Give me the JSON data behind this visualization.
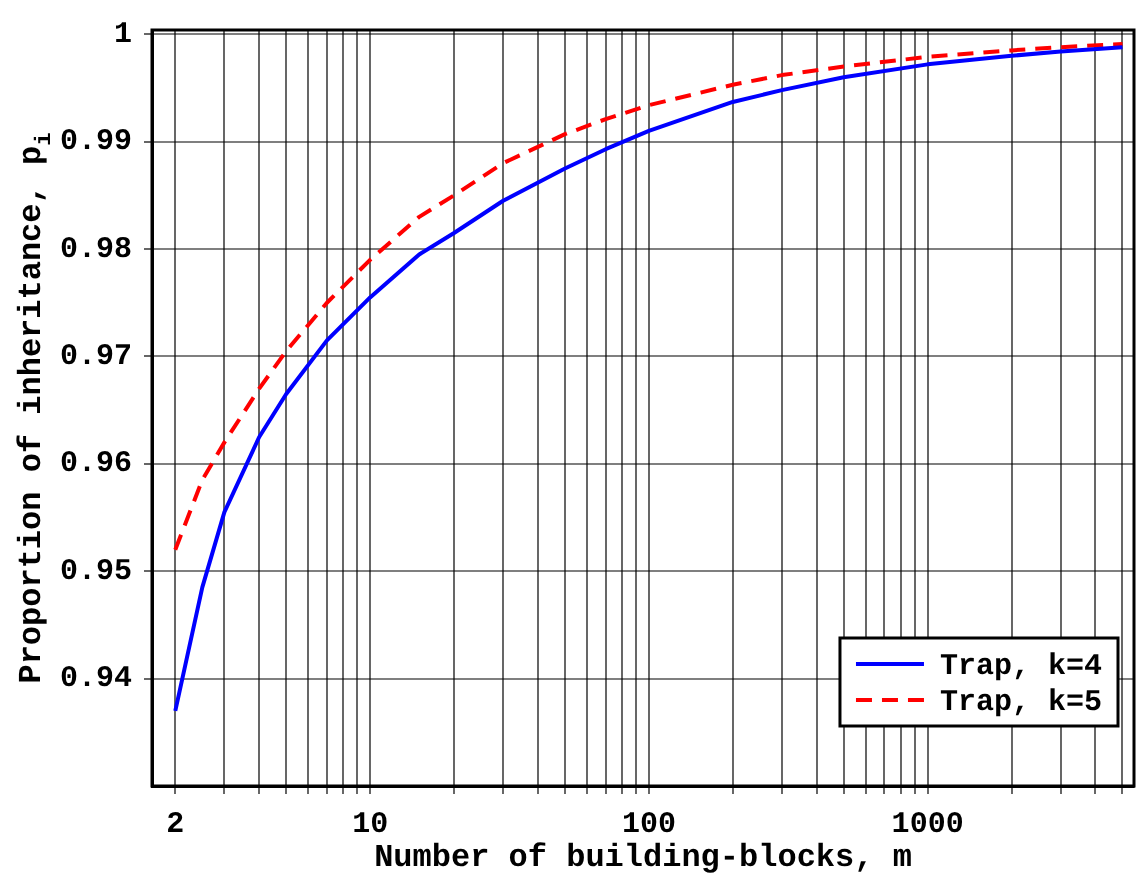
{
  "chart_data": {
    "type": "line",
    "xlabel": "Number of building-blocks, m",
    "ylabel": "Proportion of inheritance, p$_{i}$",
    "x": [
      2,
      2.5,
      3,
      4,
      5,
      7,
      10,
      15,
      20,
      30,
      50,
      70,
      100,
      200,
      300,
      500,
      1000,
      2000,
      3000,
      5000
    ],
    "series": [
      {
        "name": "Trap, k=4",
        "color": "#0000ff",
        "line_style": "solid",
        "values": [
          0.937,
          0.9485,
          0.9555,
          0.9625,
          0.9665,
          0.9715,
          0.9755,
          0.9795,
          0.9815,
          0.9845,
          0.9875,
          0.9893,
          0.991,
          0.9937,
          0.9948,
          0.996,
          0.9972,
          0.998,
          0.9984,
          0.9988
        ]
      },
      {
        "name": "Trap, k=5",
        "color": "#ff0000",
        "line_style": "dashed",
        "values": [
          0.952,
          0.9585,
          0.962,
          0.967,
          0.9705,
          0.975,
          0.979,
          0.983,
          0.985,
          0.988,
          0.9907,
          0.9921,
          0.9934,
          0.9953,
          0.9962,
          0.997,
          0.9979,
          0.9985,
          0.9988,
          0.9991
        ]
      }
    ],
    "log": "x",
    "xlim": [
      1.65,
      5500
    ],
    "ylim": [
      0.93,
      1.0004
    ],
    "xticks": [
      2,
      {
        "value": 3,
        "label": null
      },
      {
        "value": 4,
        "label": null
      },
      {
        "value": 5,
        "label": null
      },
      {
        "value": 6,
        "label": null
      },
      {
        "value": 7,
        "label": null
      },
      {
        "value": 8,
        "label": null
      },
      {
        "value": 9,
        "label": null
      },
      10,
      {
        "value": 20,
        "label": null
      },
      {
        "value": 30,
        "label": null
      },
      {
        "value": 40,
        "label": null
      },
      {
        "value": 50,
        "label": null
      },
      {
        "value": 60,
        "label": null
      },
      {
        "value": 70,
        "label": null
      },
      {
        "value": 80,
        "label": null
      },
      {
        "value": 90,
        "label": null
      },
      100,
      {
        "value": 200,
        "label": null
      },
      {
        "value": 300,
        "label": null
      },
      {
        "value": 400,
        "label": null
      },
      {
        "value": 500,
        "label": null
      },
      {
        "value": 600,
        "label": null
      },
      {
        "value": 700,
        "label": null
      },
      {
        "value": 800,
        "label": null
      },
      {
        "value": 900,
        "label": null
      },
      1000,
      {
        "value": 2000,
        "label": null
      },
      {
        "value": 3000,
        "label": null
      },
      {
        "value": 4000,
        "label": null
      },
      {
        "value": 5000,
        "label": null
      }
    ],
    "yticks": [
      0.94,
      0.95,
      0.96,
      0.97,
      0.98,
      0.99,
      1
    ],
    "grid": true,
    "legend": "bottom right",
    "marker": "none"
  }
}
